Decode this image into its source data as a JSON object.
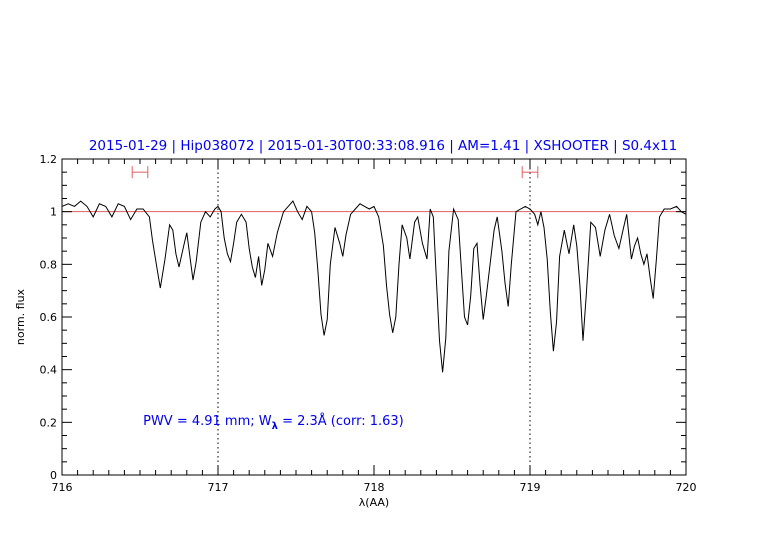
{
  "chart_data": {
    "type": "line",
    "title": "2015-01-29 | Hip038072 | 2015-01-30T00:33:08.916 | AM=1.41 | XSHOOTER | S0.4x11",
    "xlabel": "λ(AA)",
    "ylabel": "norm. flux",
    "xlim": [
      716,
      720
    ],
    "ylim": [
      0,
      1.2
    ],
    "x_ticks": [
      "716",
      "717",
      "718",
      "719",
      "720"
    ],
    "y_ticks": [
      "0",
      "0.2",
      "0.4",
      "0.6",
      "0.8",
      "1",
      "1.2"
    ],
    "continuum_level": 1.0,
    "continuum_color": "#e06060",
    "spectrum_color": "#000000",
    "vertical_markers": [
      717.0,
      719.0
    ],
    "ranges": [
      {
        "start": 716.45,
        "end": 716.55,
        "y": 1.15
      },
      {
        "start": 718.95,
        "end": 719.05,
        "y": 1.15
      }
    ],
    "annotation": {
      "prefix": "PWV = 4.91 mm; W",
      "subscript": "λ",
      "suffix": " = 2.3Å (corr: 1.63)",
      "x": 716.52,
      "y": 0.19
    },
    "series": [
      {
        "points": [
          [
            716.0,
            1.02
          ],
          [
            716.04,
            1.03
          ],
          [
            716.08,
            1.02
          ],
          [
            716.12,
            1.04
          ],
          [
            716.16,
            1.02
          ],
          [
            716.2,
            0.98
          ],
          [
            716.24,
            1.03
          ],
          [
            716.28,
            1.02
          ],
          [
            716.32,
            0.98
          ],
          [
            716.36,
            1.03
          ],
          [
            716.4,
            1.02
          ],
          [
            716.44,
            0.97
          ],
          [
            716.48,
            1.01
          ],
          [
            716.52,
            1.01
          ],
          [
            716.56,
            0.98
          ],
          [
            716.58,
            0.89
          ],
          [
            716.61,
            0.78
          ],
          [
            716.63,
            0.71
          ],
          [
            716.66,
            0.82
          ],
          [
            716.69,
            0.95
          ],
          [
            716.71,
            0.93
          ],
          [
            716.73,
            0.84
          ],
          [
            716.75,
            0.79
          ],
          [
            716.78,
            0.87
          ],
          [
            716.8,
            0.92
          ],
          [
            716.82,
            0.83
          ],
          [
            716.84,
            0.74
          ],
          [
            716.86,
            0.81
          ],
          [
            716.89,
            0.96
          ],
          [
            716.92,
            1.0
          ],
          [
            716.95,
            0.98
          ],
          [
            716.98,
            1.01
          ],
          [
            717.0,
            1.02
          ],
          [
            717.02,
            1.0
          ],
          [
            717.04,
            0.9
          ],
          [
            717.06,
            0.84
          ],
          [
            717.08,
            0.81
          ],
          [
            717.1,
            0.88
          ],
          [
            717.12,
            0.96
          ],
          [
            717.15,
            0.99
          ],
          [
            717.18,
            0.96
          ],
          [
            717.2,
            0.86
          ],
          [
            717.22,
            0.79
          ],
          [
            717.24,
            0.75
          ],
          [
            717.26,
            0.83
          ],
          [
            717.28,
            0.72
          ],
          [
            717.3,
            0.78
          ],
          [
            717.32,
            0.88
          ],
          [
            717.35,
            0.83
          ],
          [
            717.38,
            0.92
          ],
          [
            717.42,
            1.0
          ],
          [
            717.45,
            1.02
          ],
          [
            717.48,
            1.04
          ],
          [
            717.51,
            1.0
          ],
          [
            717.54,
            0.97
          ],
          [
            717.57,
            1.02
          ],
          [
            717.6,
            1.0
          ],
          [
            717.62,
            0.92
          ],
          [
            717.64,
            0.78
          ],
          [
            717.66,
            0.61
          ],
          [
            717.68,
            0.53
          ],
          [
            717.7,
            0.59
          ],
          [
            717.72,
            0.8
          ],
          [
            717.75,
            0.94
          ],
          [
            717.78,
            0.88
          ],
          [
            717.8,
            0.83
          ],
          [
            717.82,
            0.91
          ],
          [
            717.85,
            0.99
          ],
          [
            717.88,
            1.01
          ],
          [
            717.91,
            1.03
          ],
          [
            717.94,
            1.02
          ],
          [
            717.97,
            1.01
          ],
          [
            718.0,
            1.02
          ],
          [
            718.03,
            0.98
          ],
          [
            718.06,
            0.87
          ],
          [
            718.08,
            0.72
          ],
          [
            718.1,
            0.61
          ],
          [
            718.12,
            0.54
          ],
          [
            718.14,
            0.6
          ],
          [
            718.16,
            0.8
          ],
          [
            718.18,
            0.95
          ],
          [
            718.21,
            0.9
          ],
          [
            718.23,
            0.82
          ],
          [
            718.26,
            0.96
          ],
          [
            718.28,
            0.98
          ],
          [
            718.31,
            0.88
          ],
          [
            718.34,
            0.82
          ],
          [
            718.36,
            1.01
          ],
          [
            718.38,
            0.98
          ],
          [
            718.4,
            0.74
          ],
          [
            718.42,
            0.51
          ],
          [
            718.44,
            0.39
          ],
          [
            718.46,
            0.52
          ],
          [
            718.48,
            0.85
          ],
          [
            718.51,
            1.01
          ],
          [
            718.54,
            0.97
          ],
          [
            718.56,
            0.78
          ],
          [
            718.58,
            0.6
          ],
          [
            718.6,
            0.57
          ],
          [
            718.62,
            0.68
          ],
          [
            718.64,
            0.86
          ],
          [
            718.66,
            0.88
          ],
          [
            718.68,
            0.72
          ],
          [
            718.7,
            0.59
          ],
          [
            718.72,
            0.68
          ],
          [
            718.75,
            0.83
          ],
          [
            718.77,
            0.93
          ],
          [
            718.79,
            0.98
          ],
          [
            718.82,
            0.85
          ],
          [
            718.84,
            0.73
          ],
          [
            718.86,
            0.64
          ],
          [
            718.88,
            0.8
          ],
          [
            718.91,
            1.0
          ],
          [
            718.94,
            1.01
          ],
          [
            718.97,
            1.02
          ],
          [
            719.0,
            1.01
          ],
          [
            719.03,
            0.99
          ],
          [
            719.05,
            0.95
          ],
          [
            719.07,
            1.0
          ],
          [
            719.09,
            0.94
          ],
          [
            719.11,
            0.82
          ],
          [
            719.13,
            0.62
          ],
          [
            719.15,
            0.47
          ],
          [
            719.17,
            0.58
          ],
          [
            719.19,
            0.83
          ],
          [
            719.22,
            0.93
          ],
          [
            719.25,
            0.84
          ],
          [
            719.28,
            0.95
          ],
          [
            719.3,
            0.87
          ],
          [
            719.32,
            0.72
          ],
          [
            719.34,
            0.51
          ],
          [
            719.36,
            0.68
          ],
          [
            719.39,
            0.96
          ],
          [
            719.42,
            0.94
          ],
          [
            719.45,
            0.83
          ],
          [
            719.48,
            0.93
          ],
          [
            719.51,
            0.99
          ],
          [
            719.54,
            0.91
          ],
          [
            719.57,
            0.86
          ],
          [
            719.6,
            0.94
          ],
          [
            719.62,
            0.99
          ],
          [
            719.65,
            0.82
          ],
          [
            719.67,
            0.87
          ],
          [
            719.69,
            0.9
          ],
          [
            719.71,
            0.84
          ],
          [
            719.73,
            0.8
          ],
          [
            719.75,
            0.84
          ],
          [
            719.77,
            0.75
          ],
          [
            719.79,
            0.67
          ],
          [
            719.81,
            0.82
          ],
          [
            719.83,
            0.98
          ],
          [
            719.86,
            1.01
          ],
          [
            719.9,
            1.01
          ],
          [
            719.94,
            1.02
          ],
          [
            719.97,
            1.0
          ],
          [
            720.0,
            0.99
          ]
        ]
      }
    ]
  }
}
